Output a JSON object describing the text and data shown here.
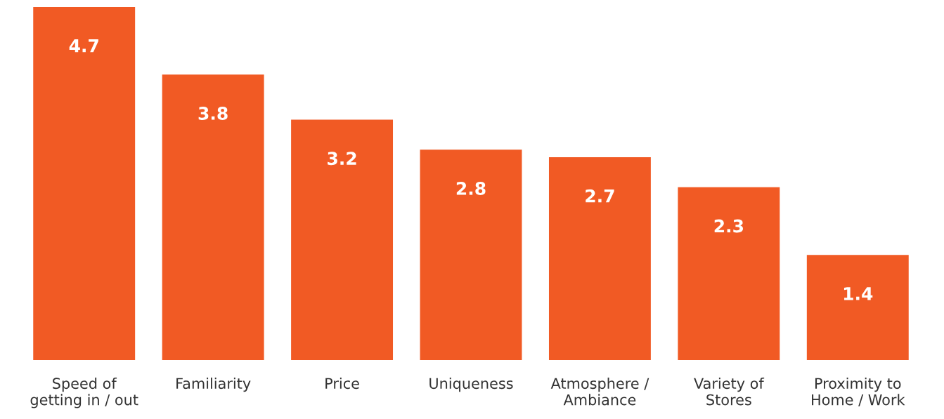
{
  "chart_data": {
    "type": "bar",
    "categories": [
      "Speed of\ngetting in / out",
      "Familiarity",
      "Price",
      "Uniqueness",
      "Atmosphere /\nAmbiance",
      "Variety of\nStores",
      "Proximity to\nHome / Work"
    ],
    "values": [
      4.7,
      3.8,
      3.2,
      2.8,
      2.7,
      2.3,
      1.4
    ],
    "color": "#f15a24",
    "data_labels": true,
    "grid": false,
    "legend": false
  }
}
